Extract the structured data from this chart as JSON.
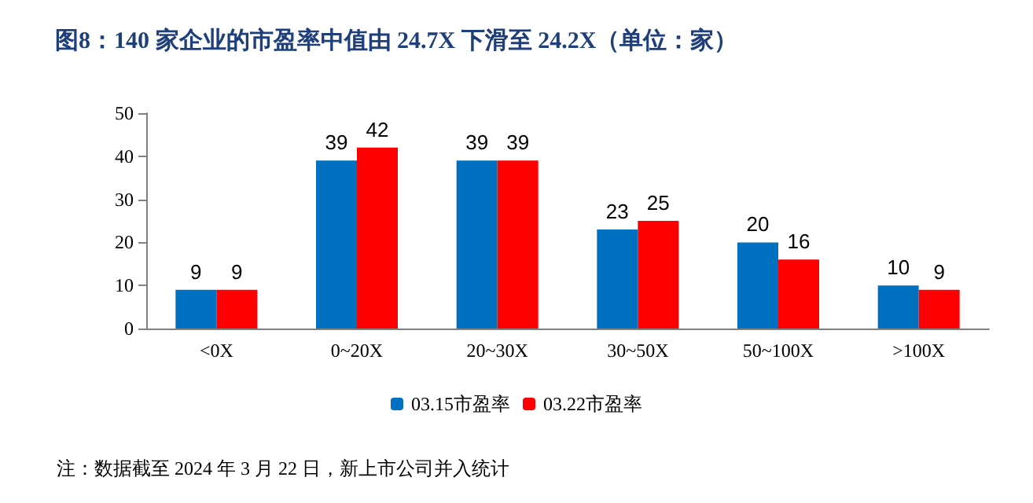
{
  "chart_data": {
    "type": "bar",
    "title": "图8：140 家企业的市盈率中值由 24.7X 下滑至 24.2X（单位：家）",
    "categories": [
      "<0X",
      "0~20X",
      "20~30X",
      "30~50X",
      "50~100X",
      ">100X"
    ],
    "series": [
      {
        "name": "03.15市盈率",
        "color": "#0070c0",
        "values": [
          9,
          39,
          39,
          23,
          20,
          10
        ]
      },
      {
        "name": "03.22市盈率",
        "color": "#ff0000",
        "values": [
          9,
          42,
          39,
          25,
          16,
          9
        ]
      }
    ],
    "ylim": [
      0,
      50
    ],
    "yticks": [
      0,
      10,
      20,
      30,
      40,
      50
    ],
    "grid": false,
    "legend": "bottom",
    "data_labels": true,
    "annotations": [
      "注：数据截至 2024 年 3 月 22 日，新上市公司并入统计"
    ]
  }
}
